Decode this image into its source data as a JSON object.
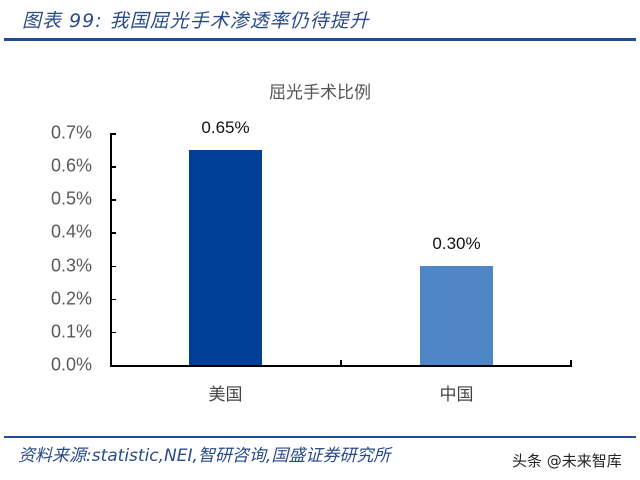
{
  "header": {
    "title": "图表 99:  我国屈光手术渗透率仍待提升"
  },
  "footer": {
    "source": "资料来源:statistic,NEI,智研咨询,国盛证券研究所",
    "watermark": "头条 @未来智库"
  },
  "chart_data": {
    "type": "bar",
    "title": "屈光手术比例",
    "categories": [
      "美国",
      "中国"
    ],
    "values": [
      0.65,
      0.3
    ],
    "value_labels": [
      "0.65%",
      "0.30%"
    ],
    "bar_colors": [
      "#003f97",
      "#4f86c6"
    ],
    "xlabel": "",
    "ylabel": "",
    "ylim": [
      0,
      0.7
    ],
    "yticks": [
      "0.0%",
      "0.1%",
      "0.2%",
      "0.3%",
      "0.4%",
      "0.5%",
      "0.6%",
      "0.7%"
    ],
    "grid": false,
    "legend": null
  }
}
